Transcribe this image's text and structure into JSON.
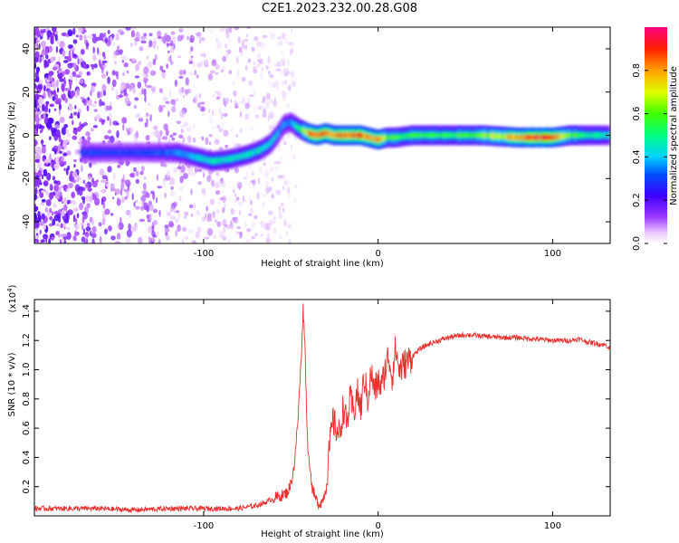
{
  "title": "C2E1.2023.232.00.28.G08",
  "chart_data": [
    {
      "type": "heatmap",
      "title": "",
      "xlabel": "Height of straight line (km)",
      "ylabel": "Frequency (Hz)",
      "xlim": [
        -197,
        133
      ],
      "ylim": [
        -50,
        50
      ],
      "xticks": [
        -100,
        0,
        100
      ],
      "xtick_labels": [
        "-100",
        "0",
        "100"
      ],
      "yticks": [
        -40,
        -20,
        0,
        20,
        40
      ],
      "ytick_labels": [
        "-40",
        "-20",
        "0",
        "20",
        "40"
      ],
      "colorbar": {
        "label": "Normalized spectral amplitude",
        "range": [
          0,
          1
        ],
        "ticks": [
          0.0,
          0.2,
          0.4,
          0.6,
          0.8
        ],
        "tick_labels": [
          "0.0",
          "0.2",
          "0.4",
          "0.6",
          "0.8"
        ]
      },
      "ridge": {
        "x": [
          -170,
          -150,
          -130,
          -115,
          -105,
          -95,
          -85,
          -75,
          -68,
          -62,
          -58,
          -54,
          -50,
          -45,
          -40,
          -35,
          -30,
          -25,
          -20,
          -15,
          -10,
          -5,
          0,
          5,
          10,
          20,
          40,
          60,
          80,
          90,
          100,
          110,
          120,
          133
        ],
        "freq": [
          -8,
          -8,
          -8,
          -8,
          -10,
          -12,
          -11,
          -9,
          -7,
          -4,
          0,
          5,
          6,
          3,
          1,
          0,
          1,
          0,
          0,
          0,
          0,
          -1,
          -2,
          -1,
          -1,
          0,
          0,
          0,
          -1,
          -1,
          -1,
          0,
          0,
          0
        ],
        "amplitude": [
          0.3,
          0.3,
          0.3,
          0.35,
          0.4,
          0.45,
          0.45,
          0.45,
          0.45,
          0.45,
          0.4,
          0.35,
          0.35,
          0.5,
          0.8,
          0.85,
          0.85,
          0.8,
          0.8,
          0.85,
          0.85,
          0.75,
          0.8,
          0.6,
          0.55,
          0.55,
          0.55,
          0.6,
          0.8,
          0.9,
          0.9,
          0.6,
          0.5,
          0.45
        ]
      },
      "grid": false,
      "legend": "none"
    },
    {
      "type": "line",
      "title": "",
      "xlabel": "Height of straight line (km)",
      "ylabel": "SNR (10 * v/v)",
      "y_multiplier_label": "(x10",
      "y_multiplier_exp": "4",
      "xlim": [
        -197,
        133
      ],
      "ylim": [
        0,
        1.48
      ],
      "xticks": [
        -100,
        0,
        100
      ],
      "xtick_labels": [
        "-100",
        "0",
        "100"
      ],
      "yticks": [
        0.2,
        0.4,
        0.6,
        0.8,
        1.0,
        1.2,
        1.4
      ],
      "ytick_labels": [
        "0.2",
        "0.4",
        "0.6",
        "0.8",
        "1.0",
        "1.2",
        "1.4"
      ],
      "series": [
        {
          "color": "#e8302c",
          "x": [
            -197,
            -180,
            -160,
            -140,
            -120,
            -100,
            -90,
            -80,
            -75,
            -70,
            -65,
            -60,
            -55,
            -52,
            -50,
            -48,
            -46,
            -44,
            -43,
            -42,
            -41,
            -40,
            -39,
            -38,
            -36,
            -34,
            -32,
            -30,
            -28,
            -26,
            -24,
            -22,
            -20,
            -18,
            -16,
            -14,
            -12,
            -10,
            -8,
            -6,
            -4,
            -2,
            0,
            2,
            4,
            6,
            8,
            10,
            12,
            14,
            16,
            18,
            20,
            25,
            30,
            35,
            40,
            45,
            50,
            60,
            70,
            80,
            90,
            100,
            105,
            110,
            115,
            120,
            125,
            130,
            133
          ],
          "y": [
            0.05,
            0.05,
            0.05,
            0.04,
            0.05,
            0.05,
            0.05,
            0.05,
            0.06,
            0.07,
            0.09,
            0.12,
            0.14,
            0.16,
            0.22,
            0.35,
            0.65,
            1.1,
            1.42,
            1.2,
            0.7,
            0.4,
            0.35,
            0.2,
            0.12,
            0.08,
            0.1,
            0.18,
            0.45,
            0.65,
            0.6,
            0.55,
            0.75,
            0.62,
            0.8,
            0.7,
            0.85,
            0.72,
            0.95,
            0.8,
            0.98,
            0.85,
            0.92,
            0.88,
            1.0,
            1.1,
            0.95,
            1.15,
            1.0,
            1.02,
            1.05,
            1.07,
            1.1,
            1.15,
            1.18,
            1.2,
            1.22,
            1.23,
            1.24,
            1.23,
            1.22,
            1.22,
            1.21,
            1.2,
            1.2,
            1.2,
            1.21,
            1.19,
            1.18,
            1.17,
            1.15
          ]
        }
      ],
      "grid": false,
      "legend": "none"
    }
  ]
}
